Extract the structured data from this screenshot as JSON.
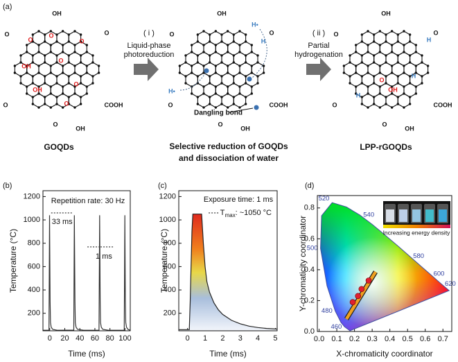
{
  "panel_a": {
    "label": "(a)",
    "steps": [
      {
        "label": "( i )",
        "text": [
          "Liquid-phase",
          "photoreduction"
        ]
      },
      {
        "label": "( ii )",
        "text": [
          "Partial",
          "hydrogenation"
        ]
      }
    ],
    "structures": [
      {
        "name": [
          "GOQDs"
        ],
        "groups": [
          "OH",
          "O",
          "O",
          "O",
          "COOH",
          "O",
          "OH"
        ],
        "red": [
          "O",
          "O",
          "O",
          "OH",
          "O",
          "OH",
          "O",
          "O"
        ],
        "blue": []
      },
      {
        "name": [
          "Selective reduction of GOQDs",
          "and dissociation of water"
        ],
        "groups": [
          "OH",
          "O",
          "O",
          "O",
          "COOH",
          "O",
          "OH"
        ],
        "red": [],
        "blue": [
          "H•",
          "H•",
          "H"
        ],
        "note": "Dangling bond"
      },
      {
        "name": [
          "LPP-rGOQDs"
        ],
        "groups": [
          "OH",
          "O",
          "O",
          "O",
          "COOH",
          "O",
          "OH"
        ],
        "red": [
          "O",
          "OH"
        ],
        "blue": [
          "H",
          "H",
          "H"
        ]
      }
    ]
  },
  "chart_data": [
    {
      "type": "line",
      "label": "(b)",
      "xlabel": "Time (ms)",
      "ylabel": "Temperature (°C)",
      "annotations": [
        "Repetition rate: 30 Hz",
        "33 ms",
        "1 ms"
      ],
      "color": "#333333",
      "x": [
        -9,
        -1,
        -0.3,
        0.5,
        1,
        2,
        4,
        10,
        32,
        32.7,
        33.5,
        34,
        35,
        37,
        45,
        65.5,
        66.3,
        67,
        67.5,
        68.5,
        70.5,
        78,
        99,
        99.8,
        100.5,
        101,
        102,
        104,
        107
      ],
      "values": [
        55,
        55,
        1040,
        300,
        120,
        80,
        62,
        55,
        56,
        1040,
        300,
        120,
        80,
        62,
        55,
        55,
        1040,
        300,
        120,
        80,
        62,
        55,
        55,
        1040,
        300,
        120,
        80,
        62,
        55
      ],
      "xlim": [
        -9,
        107
      ],
      "ylim": [
        50,
        1250
      ],
      "xticks": [
        0,
        20,
        40,
        60,
        80,
        100
      ],
      "yticks": [
        200,
        400,
        600,
        800,
        1000,
        1200
      ]
    },
    {
      "type": "line",
      "label": "(c)",
      "xlabel": "Time (ms)",
      "ylabel": "Temperature (°C)",
      "annotations": [
        "Exposure time: 1 ms"
      ],
      "tmax": {
        "text": "T",
        "sub": "max",
        "rest": ": ~1050 °C"
      },
      "color": "#222222",
      "x": [
        -0.5,
        0.1,
        0.15,
        0.25,
        0.3,
        0.8,
        0.9,
        1.0,
        1.1,
        1.25,
        1.5,
        1.75,
        2,
        2.5,
        3,
        3.5,
        4,
        4.5,
        5.1
      ],
      "values": [
        60,
        60,
        300,
        900,
        1050,
        1050,
        800,
        600,
        470,
        380,
        290,
        230,
        190,
        140,
        110,
        90,
        78,
        70,
        65
      ],
      "xlim": [
        -0.5,
        5.1
      ],
      "ylim": [
        50,
        1250
      ],
      "xticks": [
        0,
        1,
        2,
        3,
        4,
        5
      ],
      "yticks": [
        200,
        400,
        600,
        800,
        1000,
        1200
      ]
    },
    {
      "type": "scatter",
      "label": "(d)",
      "xlabel": "X-chromaticity coordinator",
      "ylabel": "Y-chromaticity coordinator",
      "inset_text": "Increasing energy density",
      "color": "#e02030",
      "x": [
        0.19,
        0.22,
        0.24,
        0.28
      ],
      "values": [
        0.19,
        0.23,
        0.275,
        0.33
      ],
      "locus": {
        "x": [
          0.174,
          0.144,
          0.124,
          0.091,
          0.045,
          0.008,
          0.014,
          0.074,
          0.155,
          0.23,
          0.302,
          0.373,
          0.444,
          0.512,
          0.575,
          0.627,
          0.691,
          0.735
        ],
        "y": [
          0.005,
          0.03,
          0.058,
          0.133,
          0.295,
          0.538,
          0.75,
          0.834,
          0.806,
          0.754,
          0.692,
          0.624,
          0.555,
          0.487,
          0.424,
          0.372,
          0.308,
          0.265
        ]
      },
      "wavelength_labels": [
        {
          "label": "460",
          "x": 0.144,
          "y": 0.03
        },
        {
          "label": "480",
          "x": 0.091,
          "y": 0.133
        },
        {
          "label": "500",
          "x": 0.008,
          "y": 0.538
        },
        {
          "label": "520",
          "x": 0.074,
          "y": 0.834
        },
        {
          "label": "540",
          "x": 0.23,
          "y": 0.754
        },
        {
          "label": "580",
          "x": 0.512,
          "y": 0.487
        },
        {
          "label": "600",
          "x": 0.627,
          "y": 0.372
        },
        {
          "label": "620",
          "x": 0.691,
          "y": 0.308
        }
      ],
      "xlim": [
        -0.01,
        0.75
      ],
      "ylim": [
        0,
        0.88
      ],
      "xticks": [
        {
          "value": 0,
          "label": "0.0"
        },
        {
          "value": 0.1,
          "label": "0.1"
        },
        {
          "value": 0.2,
          "label": "0.2"
        },
        {
          "value": 0.3,
          "label": "0.3"
        },
        {
          "value": 0.4,
          "label": "0.4"
        },
        {
          "value": 0.5,
          "label": "0.5"
        },
        {
          "value": 0.6,
          "label": "0.6"
        },
        {
          "value": 0.7,
          "label": "0.7"
        }
      ],
      "yticks": [
        {
          "value": 0,
          "label": "0.0"
        },
        {
          "value": 0.2,
          "label": "0.2"
        },
        {
          "value": 0.4,
          "label": "0.4"
        },
        {
          "value": 0.6,
          "label": "0.6"
        },
        {
          "value": 0.8,
          "label": "0.8"
        }
      ]
    }
  ]
}
